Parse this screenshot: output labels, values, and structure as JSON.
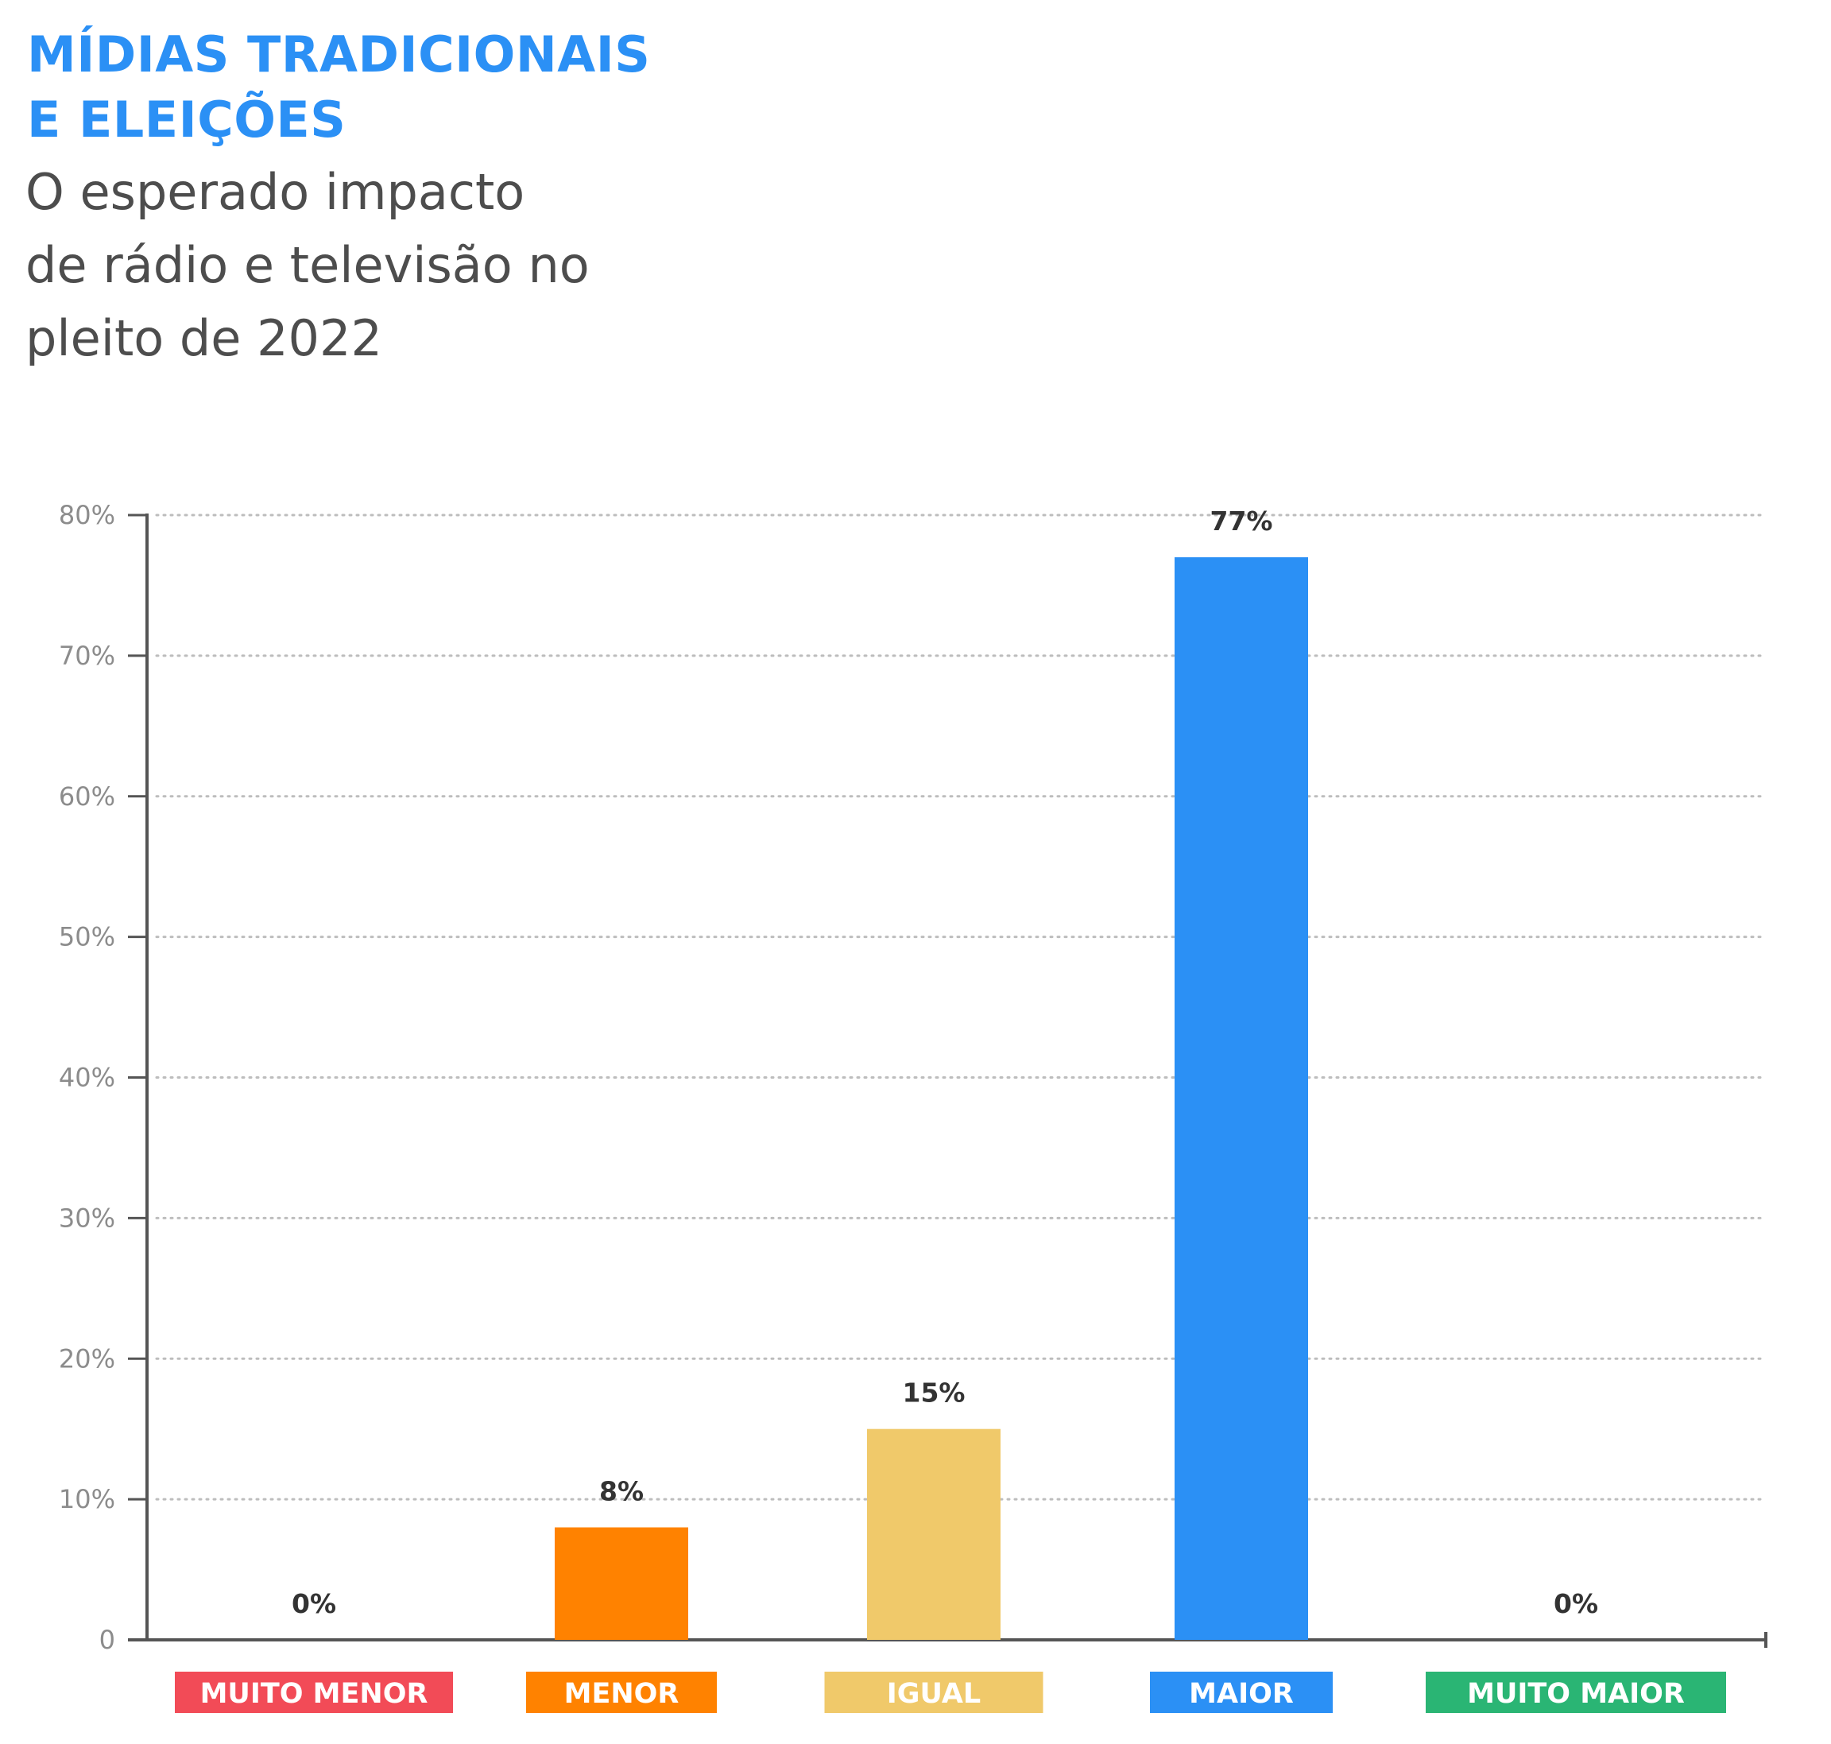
{
  "header": {
    "title_line1": "MÍDIAS TRADICIONAIS",
    "title_line2": "E ELEIÇÕES",
    "subtitle_line1": "O esperado impacto",
    "subtitle_line2": "de rádio e televisão no",
    "subtitle_line3": "pleito de 2022"
  },
  "chart_data": {
    "type": "bar",
    "categories": [
      "MUITO MENOR",
      "MENOR",
      "IGUAL",
      "MAIOR",
      "MUITO MAIOR"
    ],
    "values": [
      0,
      8,
      15,
      77,
      0
    ],
    "value_labels": [
      "0%",
      "8%",
      "15%",
      "77%",
      "0%"
    ],
    "colors": [
      "#f24b57",
      "#ff8200",
      "#f0c96a",
      "#2b90f5",
      "#2ab574"
    ],
    "ylim": [
      0,
      80
    ],
    "yticks": [
      0,
      10,
      20,
      30,
      40,
      50,
      60,
      70,
      80
    ],
    "ytick_labels": [
      "0",
      "10%",
      "20%",
      "30%",
      "40%",
      "50%",
      "60%",
      "70%",
      "80%"
    ],
    "grid": "horizontal dotted",
    "xlabel": "",
    "ylabel": ""
  }
}
